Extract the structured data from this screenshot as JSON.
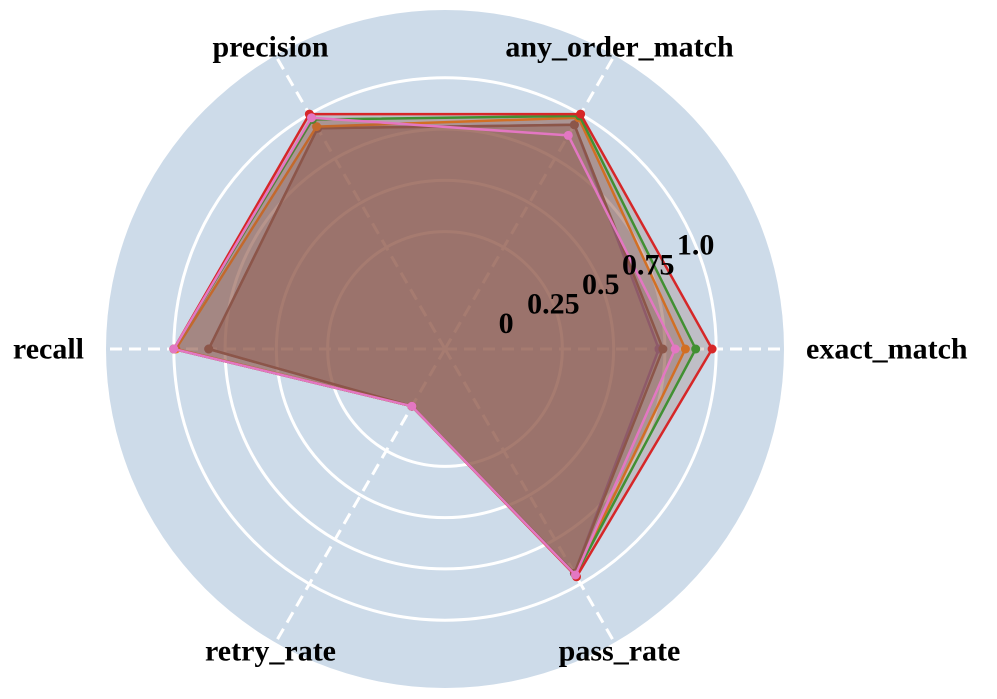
{
  "chart_data": {
    "type": "radar",
    "axes": [
      "exact_match",
      "any_order_match",
      "precision",
      "recall",
      "retry_rate",
      "pass_rate"
    ],
    "rlim": [
      0,
      1.0
    ],
    "r_ticks": [
      "0",
      "0.25",
      "0.5",
      "0.75",
      "1.0"
    ],
    "r_tick_values": [
      0,
      0.25,
      0.5,
      0.75,
      1.0
    ],
    "grid": true,
    "series": [
      {
        "values": [
          0.72,
          0.94,
          0.92,
          0.83,
          0.0,
          0.94
        ],
        "color": "#9467bd"
      },
      {
        "values": [
          0.74,
          0.94,
          0.92,
          0.83,
          0.0,
          0.94
        ],
        "color": "#8c564b"
      },
      {
        "values": [
          0.85,
          0.98,
          0.93,
          0.99,
          0.0,
          0.95
        ],
        "color": "#ff7f0e"
      },
      {
        "values": [
          0.9,
          0.99,
          0.97,
          1.0,
          0.0,
          0.95
        ],
        "color": "#2ca02c"
      },
      {
        "values": [
          0.98,
          1.0,
          1.0,
          1.0,
          0.0,
          0.96
        ],
        "color": "#d62728"
      },
      {
        "values": [
          0.8,
          0.88,
          0.98,
          1.0,
          0.0,
          0.95
        ],
        "color": "#e377c2"
      }
    ]
  },
  "colors": {
    "background_disc": "#cddbe9",
    "grid": "#ffffff",
    "fill": "#8c564b"
  }
}
